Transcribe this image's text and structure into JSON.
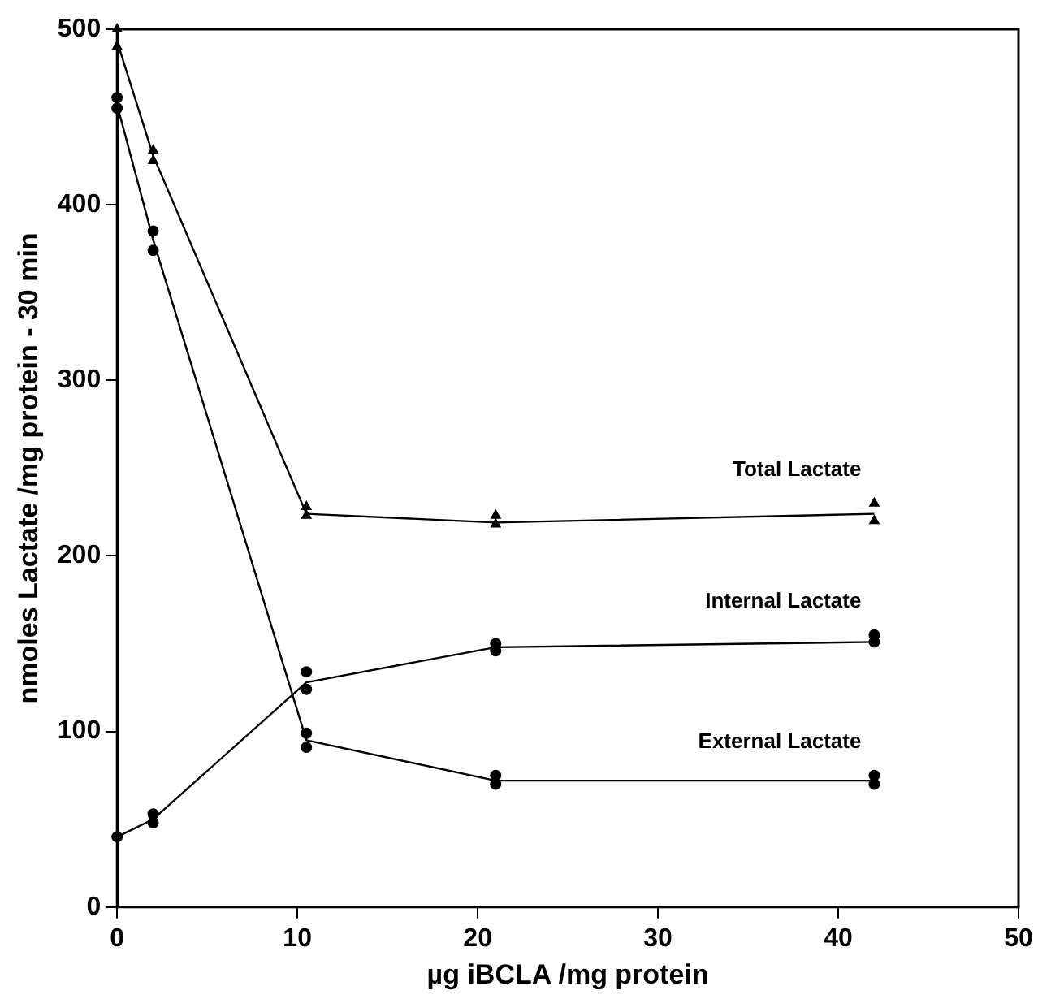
{
  "chart_data": {
    "type": "scatter",
    "xlabel": "µg iBCLA /mg protein",
    "ylabel": "nmoles Lactate /mg protein - 30 min",
    "xlim": [
      0,
      50
    ],
    "xticks": [
      0,
      10,
      20,
      30,
      40,
      50
    ],
    "ylim": [
      0,
      500
    ],
    "yticks": [
      0,
      100,
      200,
      300,
      400,
      500
    ],
    "grid": false,
    "legend": false,
    "series": [
      {
        "name": "Total Lactate",
        "marker": "triangle",
        "color": "#000000",
        "x": [
          0,
          0,
          2,
          2,
          10.5,
          10.5,
          21,
          21,
          42,
          42
        ],
        "values": [
          500,
          490,
          431,
          425,
          228,
          223,
          223,
          218,
          230,
          220
        ]
      },
      {
        "name": "Internal Lactate",
        "marker": "circle",
        "color": "#000000",
        "x": [
          0,
          2,
          2,
          10.5,
          10.5,
          21,
          21,
          42,
          42
        ],
        "values": [
          40,
          53,
          48,
          134,
          124,
          150,
          146,
          155,
          151
        ]
      },
      {
        "name": "External Lactate",
        "marker": "circle",
        "color": "#000000",
        "x": [
          0,
          0,
          2,
          2,
          10.5,
          10.5,
          21,
          21,
          42,
          42
        ],
        "values": [
          461,
          455,
          385,
          374,
          99,
          91,
          75,
          70,
          75,
          70
        ]
      },
      {
        "type": "line",
        "marker": "none",
        "color": "#000000",
        "x": [
          0,
          2,
          10.5,
          21,
          42
        ],
        "values": [
          493,
          428,
          224,
          219,
          224
        ]
      },
      {
        "type": "line",
        "marker": "none",
        "color": "#000000",
        "x": [
          0,
          2,
          10.5,
          21,
          42
        ],
        "values": [
          40,
          50,
          128,
          148,
          151
        ]
      },
      {
        "type": "line",
        "marker": "none",
        "color": "#000000",
        "x": [
          0,
          2,
          10.5,
          21,
          42
        ],
        "values": [
          457,
          380,
          95,
          72,
          72
        ]
      }
    ]
  }
}
